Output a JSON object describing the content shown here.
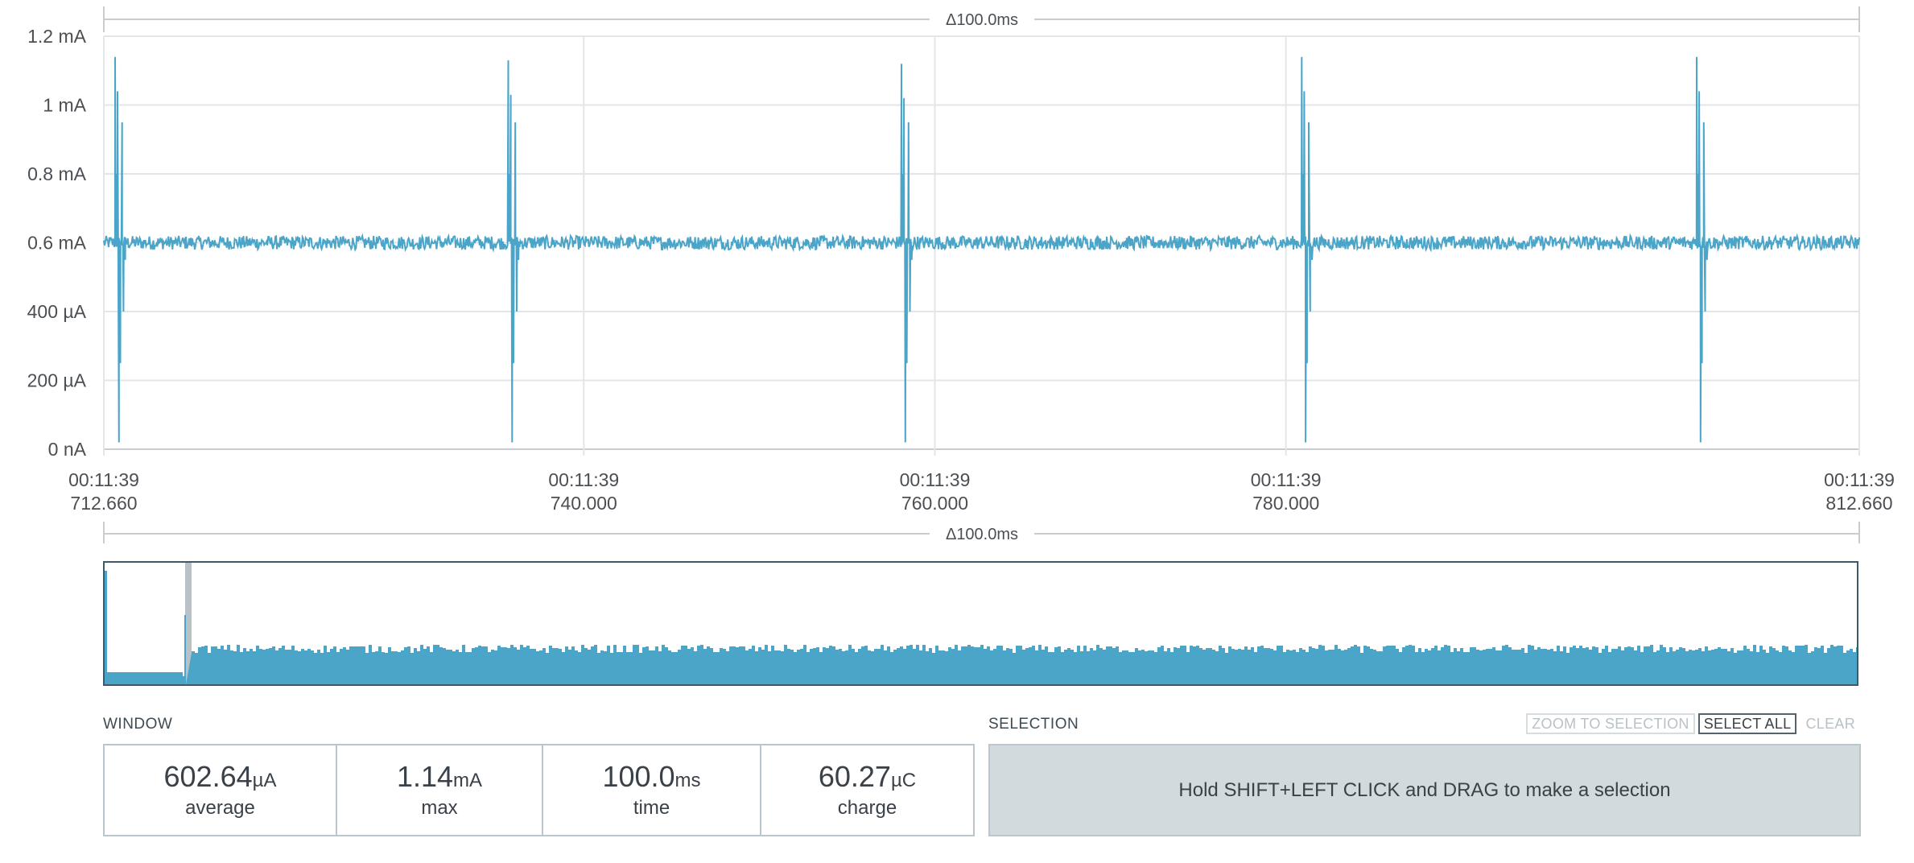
{
  "delta_top": "Δ100.0ms",
  "delta_bottom": "Δ100.0ms",
  "colors": {
    "trace": "#4aa5c9",
    "grid": "#e3e6e8",
    "axis_text": "#4b4f54"
  },
  "chart_data": {
    "type": "line",
    "title": "",
    "xlabel": "",
    "ylabel": "",
    "y_tick_labels": [
      "1.2 mA",
      "1 mA",
      "0.8 mA",
      "0.6 mA",
      "400 µA",
      "200 µA",
      "0 nA"
    ],
    "y_ticks_mA": [
      1.2,
      1.0,
      0.8,
      0.6,
      0.4,
      0.2,
      0.0
    ],
    "ylim_mA": [
      0,
      1.2
    ],
    "xlim_ms": [
      712.66,
      812.66
    ],
    "x_ticks": [
      {
        "ms": 712.66,
        "line1": "00:11:39",
        "line2": "712.660"
      },
      {
        "ms": 740.0,
        "line1": "00:11:39",
        "line2": "740.000"
      },
      {
        "ms": 760.0,
        "line1": "00:11:39",
        "line2": "760.000"
      },
      {
        "ms": 780.0,
        "line1": "00:11:39",
        "line2": "780.000"
      },
      {
        "ms": 812.66,
        "line1": "00:11:39",
        "line2": "812.660"
      }
    ],
    "grid": true,
    "series": [
      {
        "baseline_mA": 0.6,
        "noise_mA": 0.02,
        "spikes": [
          {
            "ms": 713.3,
            "peak_mA": 1.14,
            "dip_mA": 0.02
          },
          {
            "ms": 735.7,
            "peak_mA": 1.13,
            "dip_mA": 0.02
          },
          {
            "ms": 758.1,
            "peak_mA": 1.12,
            "dip_mA": 0.02
          },
          {
            "ms": 780.9,
            "peak_mA": 1.14,
            "dip_mA": 0.02
          },
          {
            "ms": 803.4,
            "peak_mA": 1.14,
            "dip_mA": 0.02
          }
        ]
      }
    ]
  },
  "window": {
    "label": "WINDOW",
    "average": {
      "value": "602.64",
      "unit": "µA",
      "label": "average"
    },
    "max": {
      "value": "1.14",
      "unit": "mA",
      "label": "max"
    },
    "time": {
      "value": "100.0",
      "unit": "ms",
      "label": "time"
    },
    "charge": {
      "value": "60.27",
      "unit": "µC",
      "label": "charge"
    }
  },
  "selection": {
    "label": "SELECTION",
    "zoom_to_selection": "ZOOM TO SELECTION",
    "select_all": "SELECT ALL",
    "clear": "CLEAR",
    "hint": "Hold SHIFT+LEFT CLICK and DRAG to make a selection"
  }
}
